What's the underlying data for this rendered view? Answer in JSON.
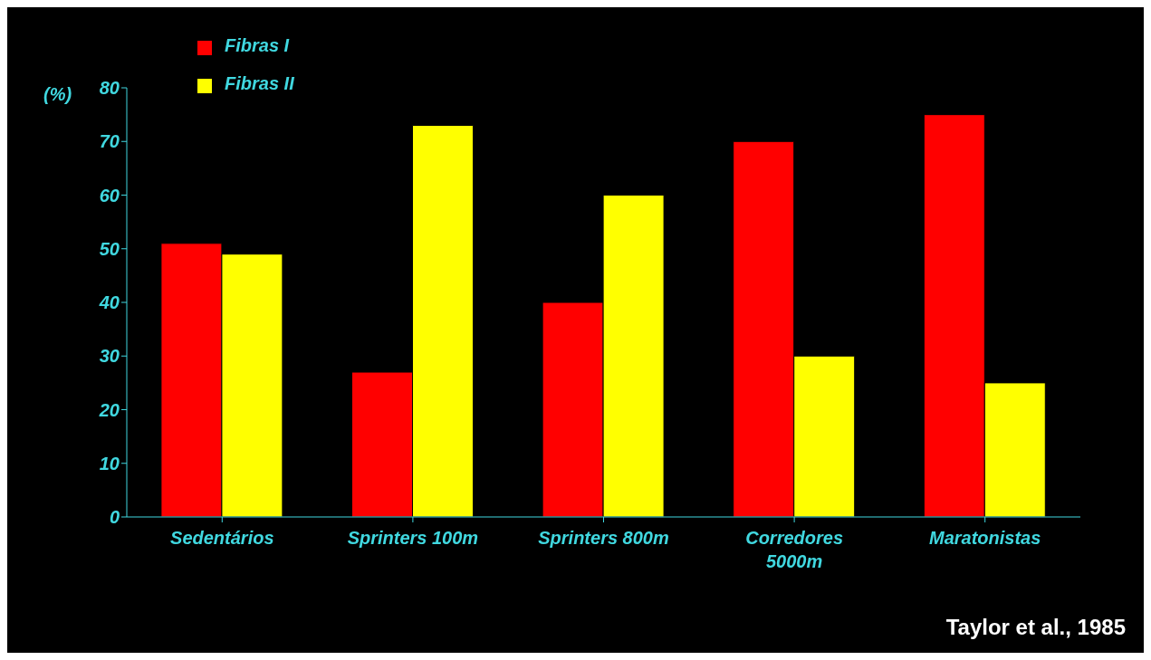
{
  "chart_data": {
    "type": "bar",
    "categories": [
      "Sedentários",
      "Sprinters 100m",
      "Sprinters 800m",
      "Corredores 5000m",
      "Maratonistas"
    ],
    "series": [
      {
        "name": "Fibras I",
        "color": "#ff0000",
        "values": [
          51,
          27,
          40,
          70,
          75
        ]
      },
      {
        "name": "Fibras II",
        "color": "#ffff00",
        "values": [
          49,
          73,
          60,
          30,
          25
        ]
      }
    ],
    "ylabel": "(%)",
    "ylim": [
      0,
      80
    ],
    "yticks": [
      0,
      10,
      20,
      30,
      40,
      50,
      60,
      70,
      80
    ],
    "grid": false,
    "legend": "top left",
    "annotations": [
      "Taylor et al., 1985"
    ]
  }
}
